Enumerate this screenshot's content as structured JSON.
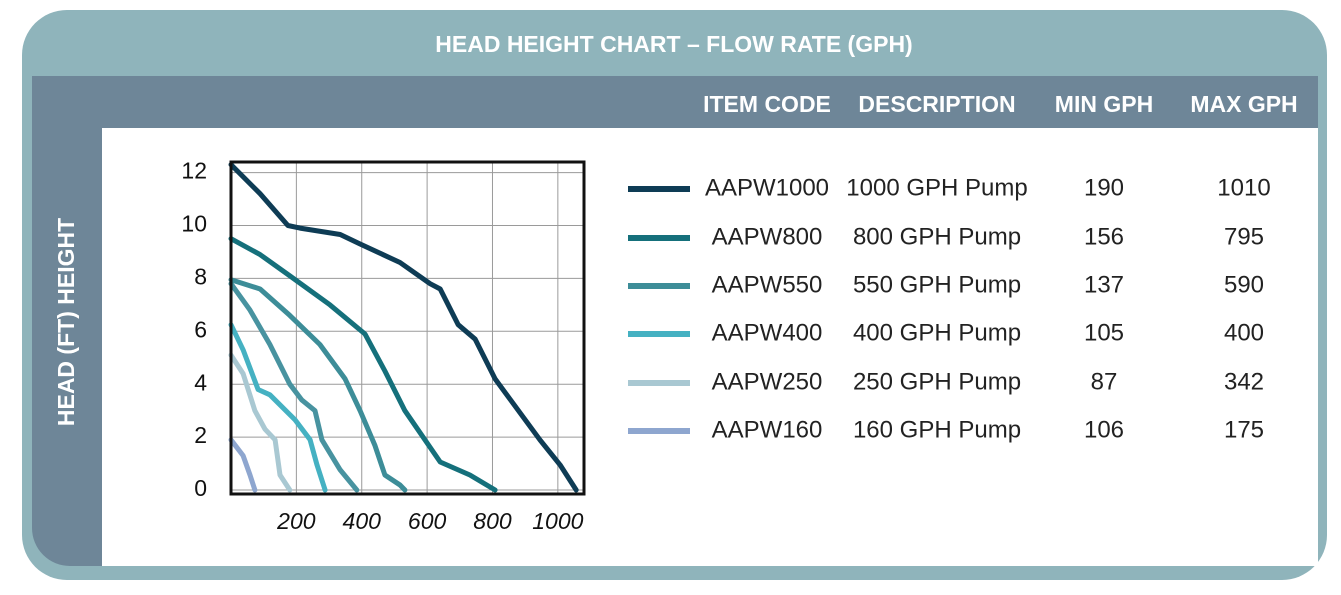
{
  "chart_data": {
    "type": "line",
    "title": "HEAD HEIGHT CHART – FLOW RATE (GPH)",
    "y_label": "HEAD (FT) HEIGHT",
    "xlim": [
      0,
      1080
    ],
    "ylim": [
      -0.15,
      12.4
    ],
    "xticks": [
      200,
      400,
      600,
      800,
      1000
    ],
    "yticks": [
      0,
      2,
      4,
      6,
      8,
      10,
      12
    ],
    "grid": true,
    "series": [
      {
        "name": "AAPW1000",
        "color": "#0e3c55",
        "x": [
          0,
          89,
          174,
          211,
          334,
          395,
          517,
          609,
          640,
          695,
          747,
          808,
          945,
          1007,
          1056
        ],
        "values": [
          12.3,
          11.2,
          10,
          9.9,
          9.66,
          9.3,
          8.6,
          7.8,
          7.6,
          6.25,
          5.7,
          4.2,
          1.9,
          0.95,
          0
        ]
      },
      {
        "name": "AAPW800",
        "color": "#15707b",
        "x": [
          0,
          89,
          180,
          303,
          410,
          471,
          532,
          640,
          731,
          808
        ],
        "values": [
          9.5,
          8.9,
          8.1,
          7.0,
          5.9,
          4.5,
          3.0,
          1.06,
          0.57,
          0
        ]
      },
      {
        "name": "AAPW550",
        "color": "#3d8d98",
        "x": [
          0,
          89,
          180,
          272,
          349,
          395,
          440,
          471,
          517,
          532
        ],
        "values": [
          7.95,
          7.6,
          6.6,
          5.5,
          4.2,
          3.0,
          1.7,
          0.57,
          0.19,
          0
        ]
      },
      {
        "name": "AAPW400",
        "color": "#45b1c2",
        "x": [
          0,
          37,
          83,
          119,
          196,
          242,
          263,
          288
        ],
        "values": [
          6.25,
          5.3,
          3.8,
          3.6,
          2.65,
          1.9,
          0.95,
          0
        ]
      },
      {
        "name": "AAPW250",
        "color": "#a9c8d2",
        "x": [
          0,
          37,
          73,
          104,
          135,
          150,
          180
        ],
        "values": [
          5.1,
          4.4,
          3.0,
          2.3,
          1.9,
          0.57,
          0
        ]
      },
      {
        "name": "AAPW160",
        "color": "#8ea6cf",
        "x": [
          0,
          37,
          58,
          73
        ],
        "values": [
          1.9,
          1.3,
          0.57,
          0
        ]
      },
      {
        "color": "#4893a0",
        "x": [
          0,
          58,
          119,
          180,
          217,
          257,
          278,
          334,
          385
        ],
        "values": [
          7.8,
          6.8,
          5.5,
          4.0,
          3.4,
          3.0,
          1.9,
          0.76,
          0
        ]
      }
    ]
  },
  "table": {
    "columns": [
      "ITEM CODE",
      "DESCRIPTION",
      "MIN GPH",
      "MAX GPH"
    ],
    "rows": [
      [
        "1000 GPH Pump",
        190,
        1010
      ],
      [
        "800 GPH Pump",
        156,
        795
      ],
      [
        "550 GPH Pump",
        137,
        590
      ],
      [
        "400 GPH Pump",
        105,
        400
      ],
      [
        "250 GPH Pump",
        87,
        342
      ],
      [
        "160 GPH Pump",
        106,
        175
      ]
    ]
  }
}
